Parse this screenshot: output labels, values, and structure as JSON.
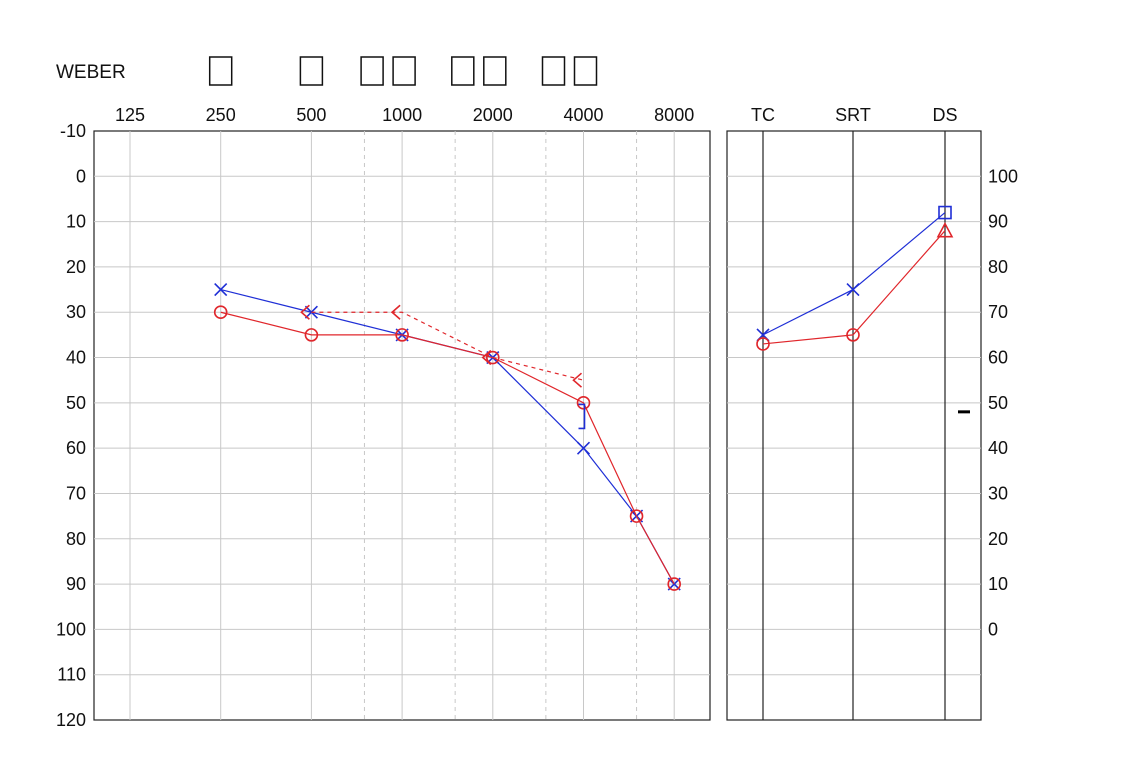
{
  "weber": {
    "label": "WEBER",
    "boxes": [
      "250",
      "500",
      "1000",
      "1000.5",
      "2000",
      "2000.5",
      "4000",
      "4000.5"
    ]
  },
  "chart_data": [
    {
      "type": "line",
      "name": "audiogram",
      "xscale": "log2",
      "x_ticks": [
        125,
        250,
        500,
        1000,
        2000,
        4000,
        8000
      ],
      "x_tick_labels": [
        "125",
        "250",
        "500",
        "1000",
        "2000",
        "4000",
        "8000"
      ],
      "x_minor_ticks": [
        750,
        1500,
        3000,
        6000
      ],
      "ylim": [
        -10,
        120
      ],
      "y_inverted": true,
      "y_ticks": [
        -10,
        0,
        10,
        20,
        30,
        40,
        50,
        60,
        70,
        80,
        90,
        100,
        110,
        120
      ],
      "y_tick_labels": [
        "-10",
        "0",
        "10",
        "20",
        "30",
        "40",
        "50",
        "60",
        "70",
        "80",
        "90",
        "100",
        "110",
        "120"
      ],
      "grid": true,
      "series": [
        {
          "symbol": "x",
          "color": "#1f2fd6",
          "line": "solid",
          "x": [
            250,
            500,
            1000,
            2000,
            4000,
            6000,
            8000
          ],
          "y": [
            25,
            30,
            35,
            40,
            60,
            75,
            90
          ]
        },
        {
          "symbol": "o",
          "color": "#e0262b",
          "line": "solid",
          "x": [
            250,
            500,
            1000,
            2000,
            4000,
            6000,
            8000
          ],
          "y": [
            30,
            35,
            35,
            40,
            50,
            75,
            90
          ]
        },
        {
          "symbol": "<",
          "color": "#e0262b",
          "line": "dashed",
          "x": [
            500,
            1000,
            2000,
            4000
          ],
          "y": [
            30,
            30,
            40,
            45
          ]
        },
        {
          "symbol": "]",
          "color": "#1f2fd6",
          "line": "none",
          "x": [
            4000
          ],
          "y": [
            53
          ]
        }
      ]
    },
    {
      "type": "line",
      "name": "speech-panel",
      "categories": [
        "TC",
        "SRT",
        "DS"
      ],
      "ylim_left": [
        -10,
        120
      ],
      "ylim_right_labels": [
        "100",
        "90",
        "80",
        "70",
        "60",
        "50",
        "40",
        "30",
        "20",
        "10",
        "0"
      ],
      "right_axis_values": [
        100,
        90,
        80,
        70,
        60,
        50,
        40,
        30,
        20,
        10,
        0
      ],
      "grid": true,
      "series": [
        {
          "symbol": "x",
          "color": "#1f2fd6",
          "line": "solid",
          "points": [
            {
              "category": "TC",
              "y": 35
            },
            {
              "category": "SRT",
              "y": 25
            }
          ]
        },
        {
          "symbol": "square",
          "color": "#1f2fd6",
          "line": "solid",
          "points": [
            {
              "category": "DS",
              "y": 8
            }
          ]
        },
        {
          "symbol": "o",
          "color": "#e0262b",
          "line": "solid",
          "points": [
            {
              "category": "TC",
              "y": 37
            },
            {
              "category": "SRT",
              "y": 35
            }
          ]
        },
        {
          "symbol": "triangle",
          "color": "#e0262b",
          "line": "solid",
          "points": [
            {
              "category": "DS",
              "y": 12
            }
          ]
        }
      ],
      "right_axis_marker": {
        "symbol": "dash",
        "color": "#000000",
        "value": 50
      }
    }
  ]
}
